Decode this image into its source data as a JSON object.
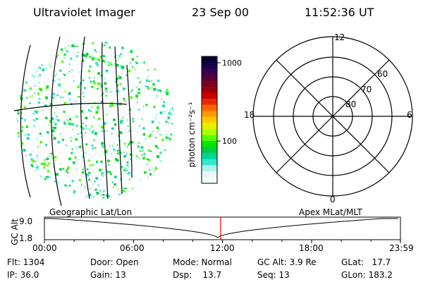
{
  "header": {
    "title": "Ultraviolet Imager",
    "date": "23 Sep 00",
    "time": "11:52:36 UT"
  },
  "colorbar": {
    "label": "photon cm⁻²s⁻¹",
    "ticks": [
      "1000",
      "100"
    ],
    "colors": [
      "#000033",
      "#1a0044",
      "#330055",
      "#55003a",
      "#7a0020",
      "#990010",
      "#cc0000",
      "#e62a00",
      "#ff6600",
      "#ff9900",
      "#ffcc00",
      "#e6f000",
      "#aaff00",
      "#55ff00",
      "#00e600",
      "#00cc44",
      "#00d699",
      "#33e6cc",
      "#aaf2ee",
      "#e6f7f5",
      "#f2fafa"
    ]
  },
  "polar": {
    "labels": {
      "top": "12",
      "bottom": "0",
      "left": "18",
      "right": "6"
    },
    "ring_labels": [
      "60",
      "70",
      "80"
    ]
  },
  "timeline": {
    "left_label": "Geographic Lat/Lon",
    "right_label": "Apex MLat/MLT",
    "axis_title": "GC Alt",
    "y_ticks": [
      "9.0",
      "1.8"
    ],
    "x_ticks": [
      "00:00",
      "06:00",
      "12:00",
      "18:00",
      "23:59"
    ],
    "marker_time": "11:52",
    "marker_color": "#ff0000"
  },
  "status": {
    "flt": "Flt: 1304",
    "ip": "IP: 36.0",
    "door": "Door: Open",
    "gain": "Gain: 13",
    "mode": "Mode: Normal",
    "dsp": "Dsp:    13.7",
    "gcalt": "GC Alt: 3.9 Re",
    "seq": "Seq: 13",
    "glat": "GLat:   17.7",
    "glon": "GLon: 183.2"
  }
}
